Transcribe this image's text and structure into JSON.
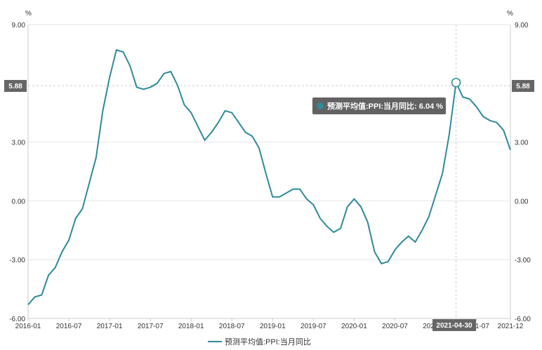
{
  "chart_data": {
    "type": "line",
    "y_unit_left": "%",
    "y_unit_right": "%",
    "ylim": [
      -6,
      9
    ],
    "y_ticks": [
      "9.00",
      "3.00",
      "0.00",
      "-3.00",
      "-6.00"
    ],
    "x_ticks": [
      "2016-01",
      "2016-07",
      "2017-01",
      "2017-07",
      "2018-01",
      "2018-07",
      "2019-01",
      "2019-07",
      "2020-01",
      "2020-07",
      "2021-01",
      "2021-07",
      "2021-12"
    ],
    "x_start": "2016-01",
    "x_end": "2021-12",
    "series": [
      {
        "name": "预测平均值:PPI:当月同比",
        "color": "#2e8a9a",
        "x": [
          "2016-01",
          "2016-02",
          "2016-03",
          "2016-04",
          "2016-05",
          "2016-06",
          "2016-07",
          "2016-08",
          "2016-09",
          "2016-10",
          "2016-11",
          "2016-12",
          "2017-01",
          "2017-02",
          "2017-03",
          "2017-04",
          "2017-05",
          "2017-06",
          "2017-07",
          "2017-08",
          "2017-09",
          "2017-10",
          "2017-11",
          "2017-12",
          "2018-01",
          "2018-02",
          "2018-03",
          "2018-04",
          "2018-05",
          "2018-06",
          "2018-07",
          "2018-08",
          "2018-09",
          "2018-10",
          "2018-11",
          "2018-12",
          "2019-01",
          "2019-02",
          "2019-03",
          "2019-04",
          "2019-05",
          "2019-06",
          "2019-07",
          "2019-08",
          "2019-09",
          "2019-10",
          "2019-11",
          "2019-12",
          "2020-01",
          "2020-02",
          "2020-03",
          "2020-04",
          "2020-05",
          "2020-06",
          "2020-07",
          "2020-08",
          "2020-09",
          "2020-10",
          "2020-11",
          "2020-12",
          "2021-01",
          "2021-02",
          "2021-03",
          "2021-04",
          "2021-05",
          "2021-06",
          "2021-07",
          "2021-08",
          "2021-09",
          "2021-10",
          "2021-11",
          "2021-12"
        ],
        "values": [
          -5.3,
          -4.9,
          -4.8,
          -3.8,
          -3.4,
          -2.6,
          -2.0,
          -0.9,
          -0.4,
          0.9,
          2.2,
          4.6,
          6.3,
          7.7,
          7.6,
          6.9,
          5.8,
          5.7,
          5.8,
          6.0,
          6.5,
          6.6,
          5.9,
          4.9,
          4.5,
          3.8,
          3.1,
          3.5,
          4.0,
          4.6,
          4.5,
          4.0,
          3.5,
          3.3,
          2.7,
          1.4,
          0.2,
          0.2,
          0.4,
          0.6,
          0.6,
          0.1,
          -0.2,
          -0.9,
          -1.3,
          -1.6,
          -1.4,
          -0.3,
          0.1,
          -0.3,
          -1.1,
          -2.6,
          -3.2,
          -3.1,
          -2.5,
          -2.1,
          -1.8,
          -2.1,
          -1.5,
          -0.8,
          0.3,
          1.4,
          3.4,
          6.04,
          5.3,
          5.2,
          4.8,
          4.3,
          4.1,
          4.0,
          3.6,
          2.6
        ]
      }
    ],
    "reference_value": "5.88",
    "highlight": {
      "date": "2021-04-30",
      "tooltip": "预测平均值:PPI:当月同比: 6.04 %",
      "value": 6.04
    },
    "legend": {
      "label": "预测平均值:PPI:当月同比",
      "position": "bottom"
    }
  }
}
